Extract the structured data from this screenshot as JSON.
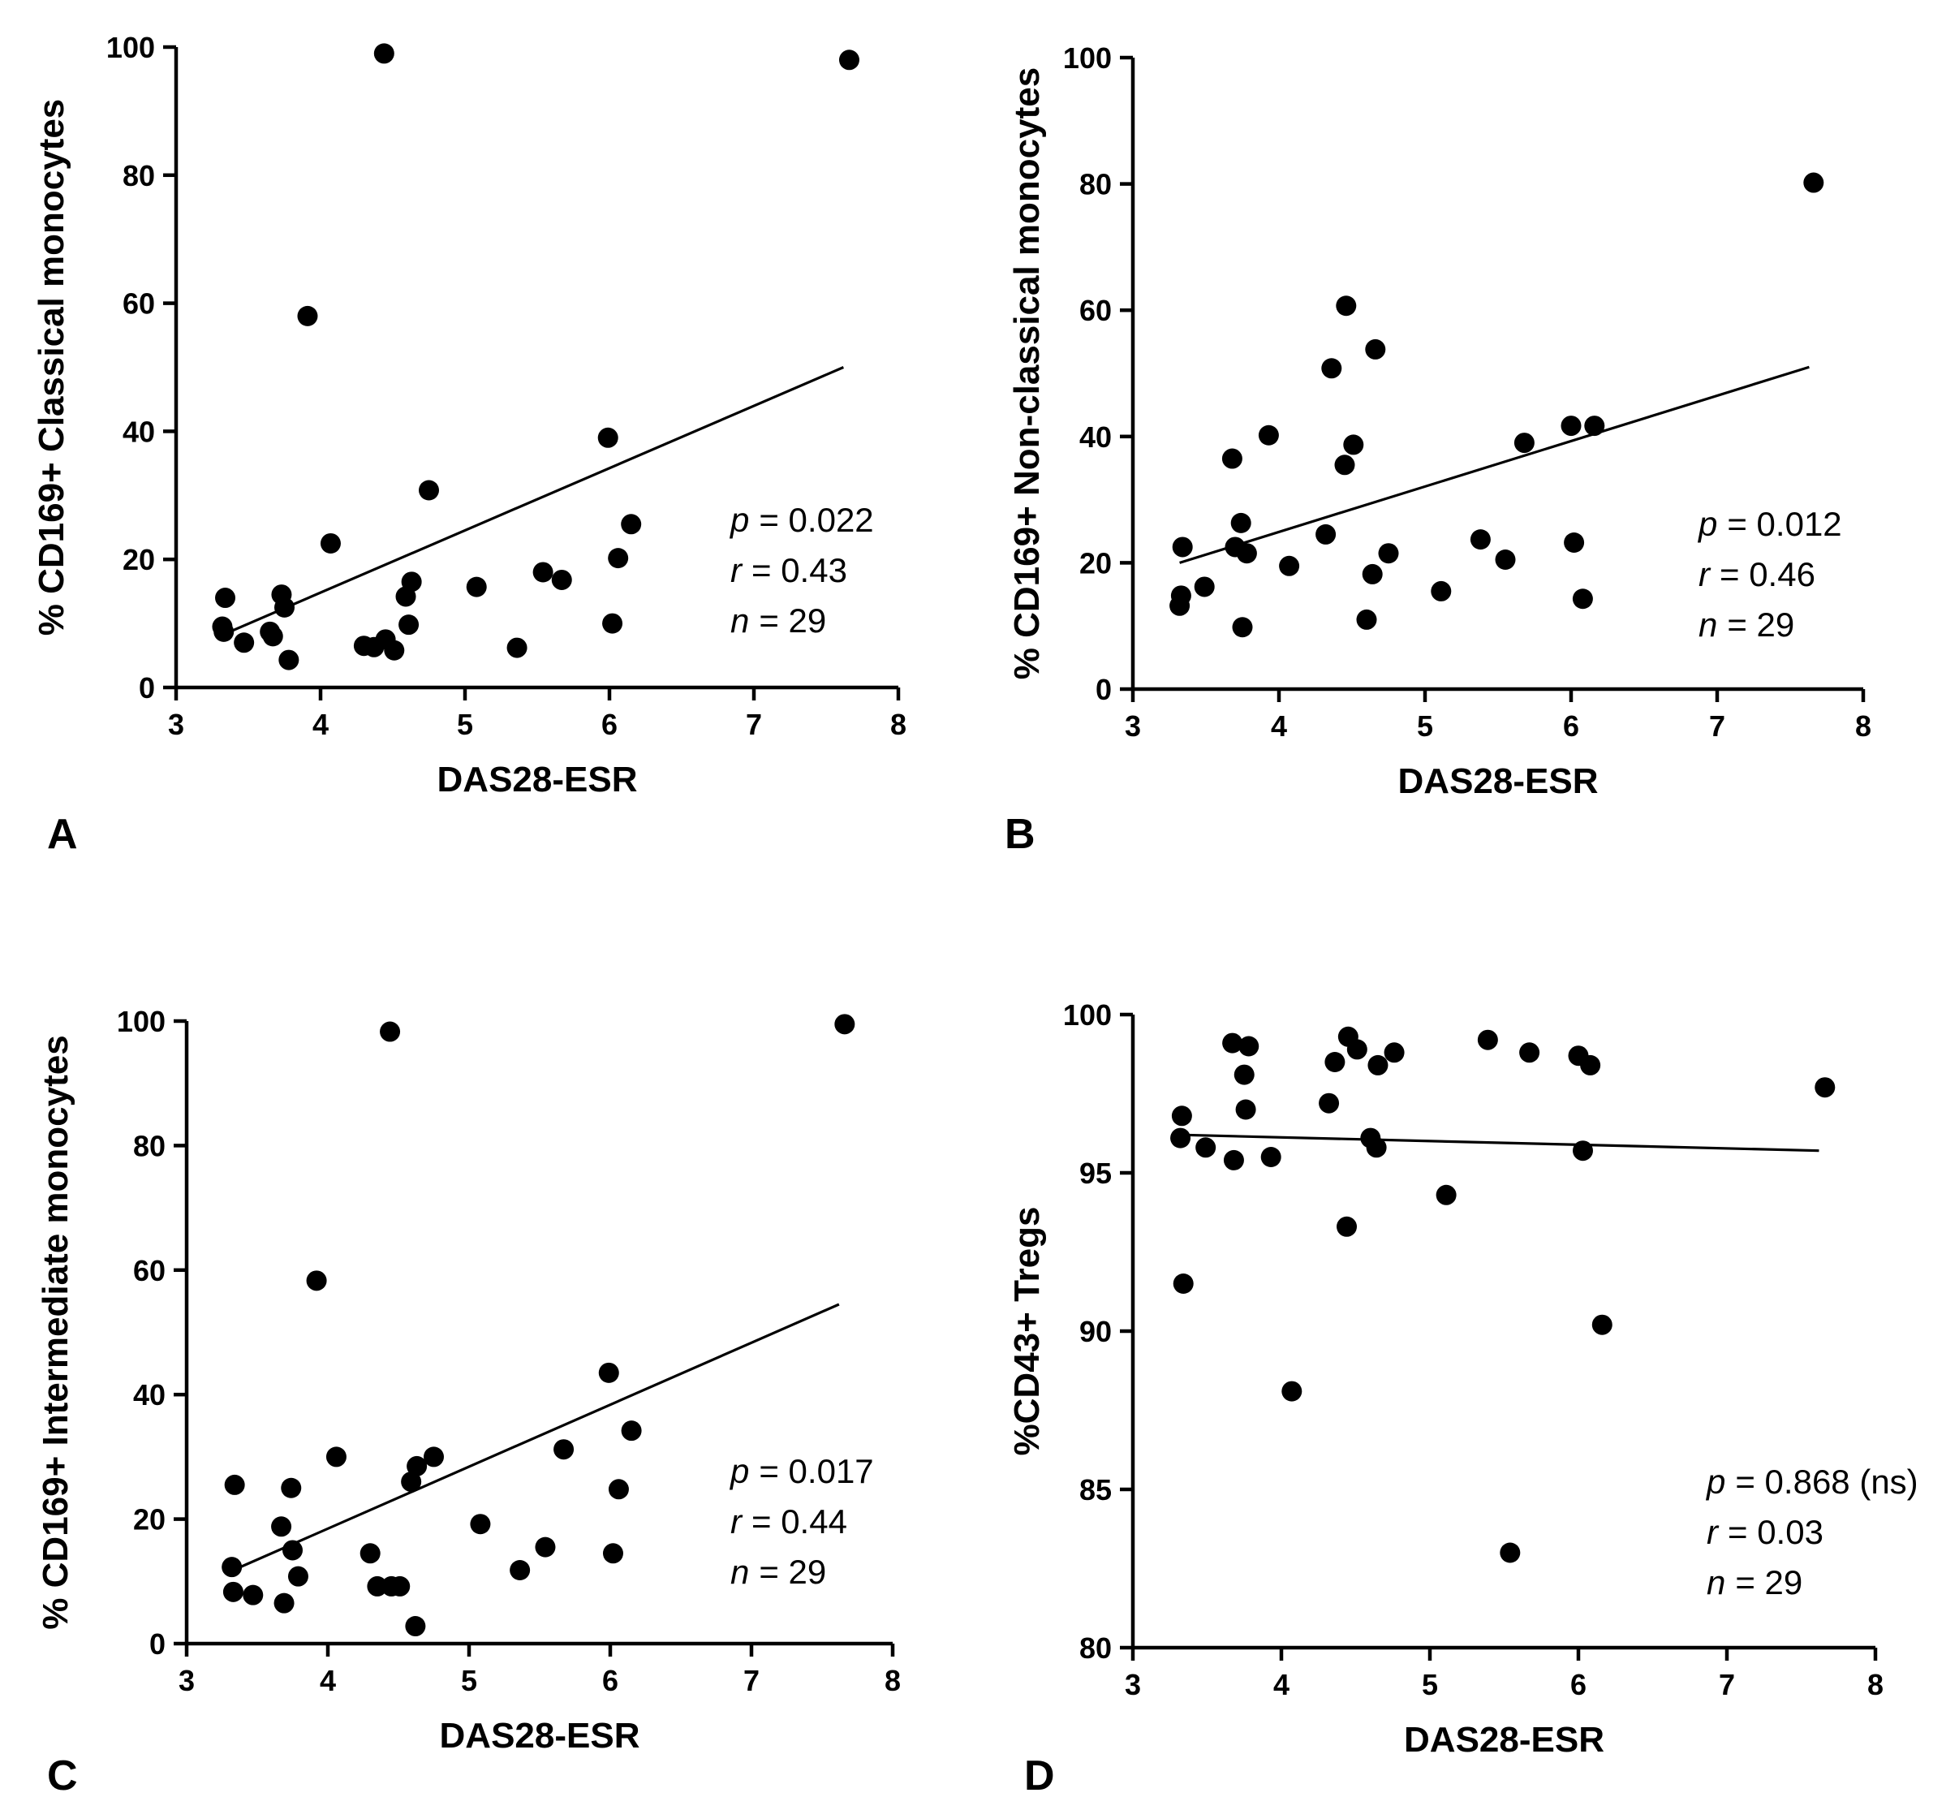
{
  "chart_data": [
    {
      "type": "scatter",
      "panel_label": "A",
      "xlabel": "DAS28-ESR",
      "ylabel": "% CD169+ Classical monocytes",
      "xlim": [
        3,
        8
      ],
      "ylim": [
        0,
        100
      ],
      "xticks": [
        3,
        4,
        5,
        6,
        7,
        8
      ],
      "yticks": [
        0,
        20,
        40,
        60,
        80,
        100
      ],
      "x": [
        3.32,
        3.33,
        3.34,
        3.47,
        3.65,
        3.67,
        3.73,
        3.75,
        3.78,
        3.91,
        4.07,
        4.3,
        4.37,
        4.44,
        4.45,
        4.51,
        4.59,
        4.61,
        4.63,
        4.75,
        5.08,
        5.36,
        5.54,
        5.67,
        5.99,
        6.02,
        6.06,
        6.15,
        7.66
      ],
      "y": [
        9.5,
        8.7,
        14.0,
        7.0,
        8.7,
        8.0,
        14.5,
        12.5,
        4.3,
        58.0,
        22.5,
        6.5,
        6.3,
        99.0,
        7.5,
        5.8,
        14.2,
        9.8,
        16.5,
        30.8,
        15.7,
        6.2,
        18.0,
        16.8,
        39.0,
        10.0,
        20.2,
        25.5,
        98.0
      ],
      "fit": {
        "x": [
          3.32,
          7.62
        ],
        "y": [
          8.2,
          50.0
        ]
      },
      "stats": {
        "p_symbol": "p",
        "p_value": "= 0.022",
        "r_symbol": "r",
        "r_value": "= 0.43",
        "n_symbol": "n",
        "n_value": "= 29"
      }
    },
    {
      "type": "scatter",
      "panel_label": "B",
      "xlabel": "DAS28-ESR",
      "ylabel": "% CD169+ Non-classical monocytes",
      "xlim": [
        3,
        8
      ],
      "ylim": [
        0,
        100
      ],
      "xticks": [
        3,
        4,
        5,
        6,
        7,
        8
      ],
      "yticks": [
        0,
        20,
        40,
        60,
        80,
        100
      ],
      "x": [
        3.32,
        3.33,
        3.34,
        3.49,
        3.68,
        3.7,
        3.74,
        3.75,
        3.78,
        3.93,
        4.07,
        4.32,
        4.36,
        4.45,
        4.46,
        4.51,
        4.6,
        4.64,
        4.66,
        4.75,
        5.11,
        5.38,
        5.55,
        5.68,
        6.0,
        6.02,
        6.08,
        6.16,
        7.66
      ],
      "y": [
        13.2,
        14.8,
        22.5,
        16.2,
        36.5,
        22.5,
        26.3,
        9.8,
        21.5,
        40.2,
        19.5,
        24.5,
        50.8,
        35.5,
        60.7,
        38.7,
        11.0,
        18.2,
        53.8,
        21.5,
        15.5,
        23.7,
        20.5,
        39.0,
        41.7,
        23.2,
        14.3,
        41.7,
        80.2
      ],
      "fit": {
        "x": [
          3.32,
          7.63
        ],
        "y": [
          20.0,
          51.0
        ]
      },
      "stats": {
        "p_symbol": "p",
        "p_value": "= 0.012",
        "r_symbol": "r",
        "r_value": "= 0.46",
        "n_symbol": "n",
        "n_value": "= 29"
      }
    },
    {
      "type": "scatter",
      "panel_label": "C",
      "xlabel": "DAS28-ESR",
      "ylabel": "% CD169+ Intermediate monocytes",
      "xlim": [
        3,
        8
      ],
      "ylim": [
        0,
        100
      ],
      "xticks": [
        3,
        4,
        5,
        6,
        7,
        8
      ],
      "yticks": [
        0,
        20,
        40,
        60,
        80,
        100
      ],
      "x": [
        3.32,
        3.33,
        3.34,
        3.47,
        3.67,
        3.69,
        3.74,
        3.75,
        3.79,
        3.92,
        4.06,
        4.3,
        4.35,
        4.44,
        4.45,
        4.51,
        4.59,
        4.62,
        4.63,
        4.75,
        5.08,
        5.36,
        5.54,
        5.67,
        5.99,
        6.02,
        6.06,
        6.15,
        7.66
      ],
      "y": [
        12.3,
        8.3,
        25.5,
        7.8,
        18.8,
        6.5,
        25.0,
        15.0,
        10.8,
        58.3,
        30.0,
        14.5,
        9.2,
        98.3,
        9.2,
        9.2,
        26.0,
        2.8,
        28.5,
        30.0,
        19.2,
        11.8,
        15.5,
        31.2,
        43.5,
        14.5,
        24.8,
        34.2,
        99.5
      ],
      "fit": {
        "x": [
          3.32,
          7.62
        ],
        "y": [
          11.7,
          54.5
        ]
      },
      "stats": {
        "p_symbol": "p",
        "p_value": "= 0.017",
        "r_symbol": "r",
        "r_value": "= 0.44",
        "n_symbol": "n",
        "n_value": "= 29"
      }
    },
    {
      "type": "scatter",
      "panel_label": "D",
      "xlabel": "DAS28-ESR",
      "ylabel": "%CD43+ Tregs",
      "xlim": [
        3,
        8
      ],
      "ylim": [
        80,
        100
      ],
      "xticks": [
        3,
        4,
        5,
        6,
        7,
        8
      ],
      "yticks": [
        80,
        85,
        90,
        95,
        100
      ],
      "x": [
        3.32,
        3.33,
        3.34,
        3.49,
        3.67,
        3.68,
        3.75,
        3.76,
        3.78,
        3.93,
        4.07,
        4.32,
        4.36,
        4.44,
        4.45,
        4.51,
        4.6,
        4.64,
        4.65,
        4.76,
        5.11,
        5.39,
        5.67,
        5.54,
        6.0,
        6.03,
        6.08,
        6.16,
        7.66
      ],
      "y": [
        96.1,
        96.8,
        91.5,
        95.8,
        99.1,
        95.4,
        98.1,
        97.0,
        99.0,
        95.5,
        88.1,
        97.2,
        98.5,
        93.3,
        99.3,
        98.9,
        96.1,
        95.8,
        98.4,
        98.8,
        94.3,
        99.2,
        98.8,
        83.0,
        98.7,
        95.7,
        98.4,
        90.2,
        97.7
      ],
      "fit": {
        "x": [
          3.32,
          7.62
        ],
        "y": [
          96.2,
          95.7
        ]
      },
      "stats": {
        "p_symbol": "p",
        "p_value": "= 0.868 (ns)",
        "r_symbol": "r",
        "r_value": "= 0.03",
        "n_symbol": "n",
        "n_value": "= 29"
      }
    }
  ]
}
